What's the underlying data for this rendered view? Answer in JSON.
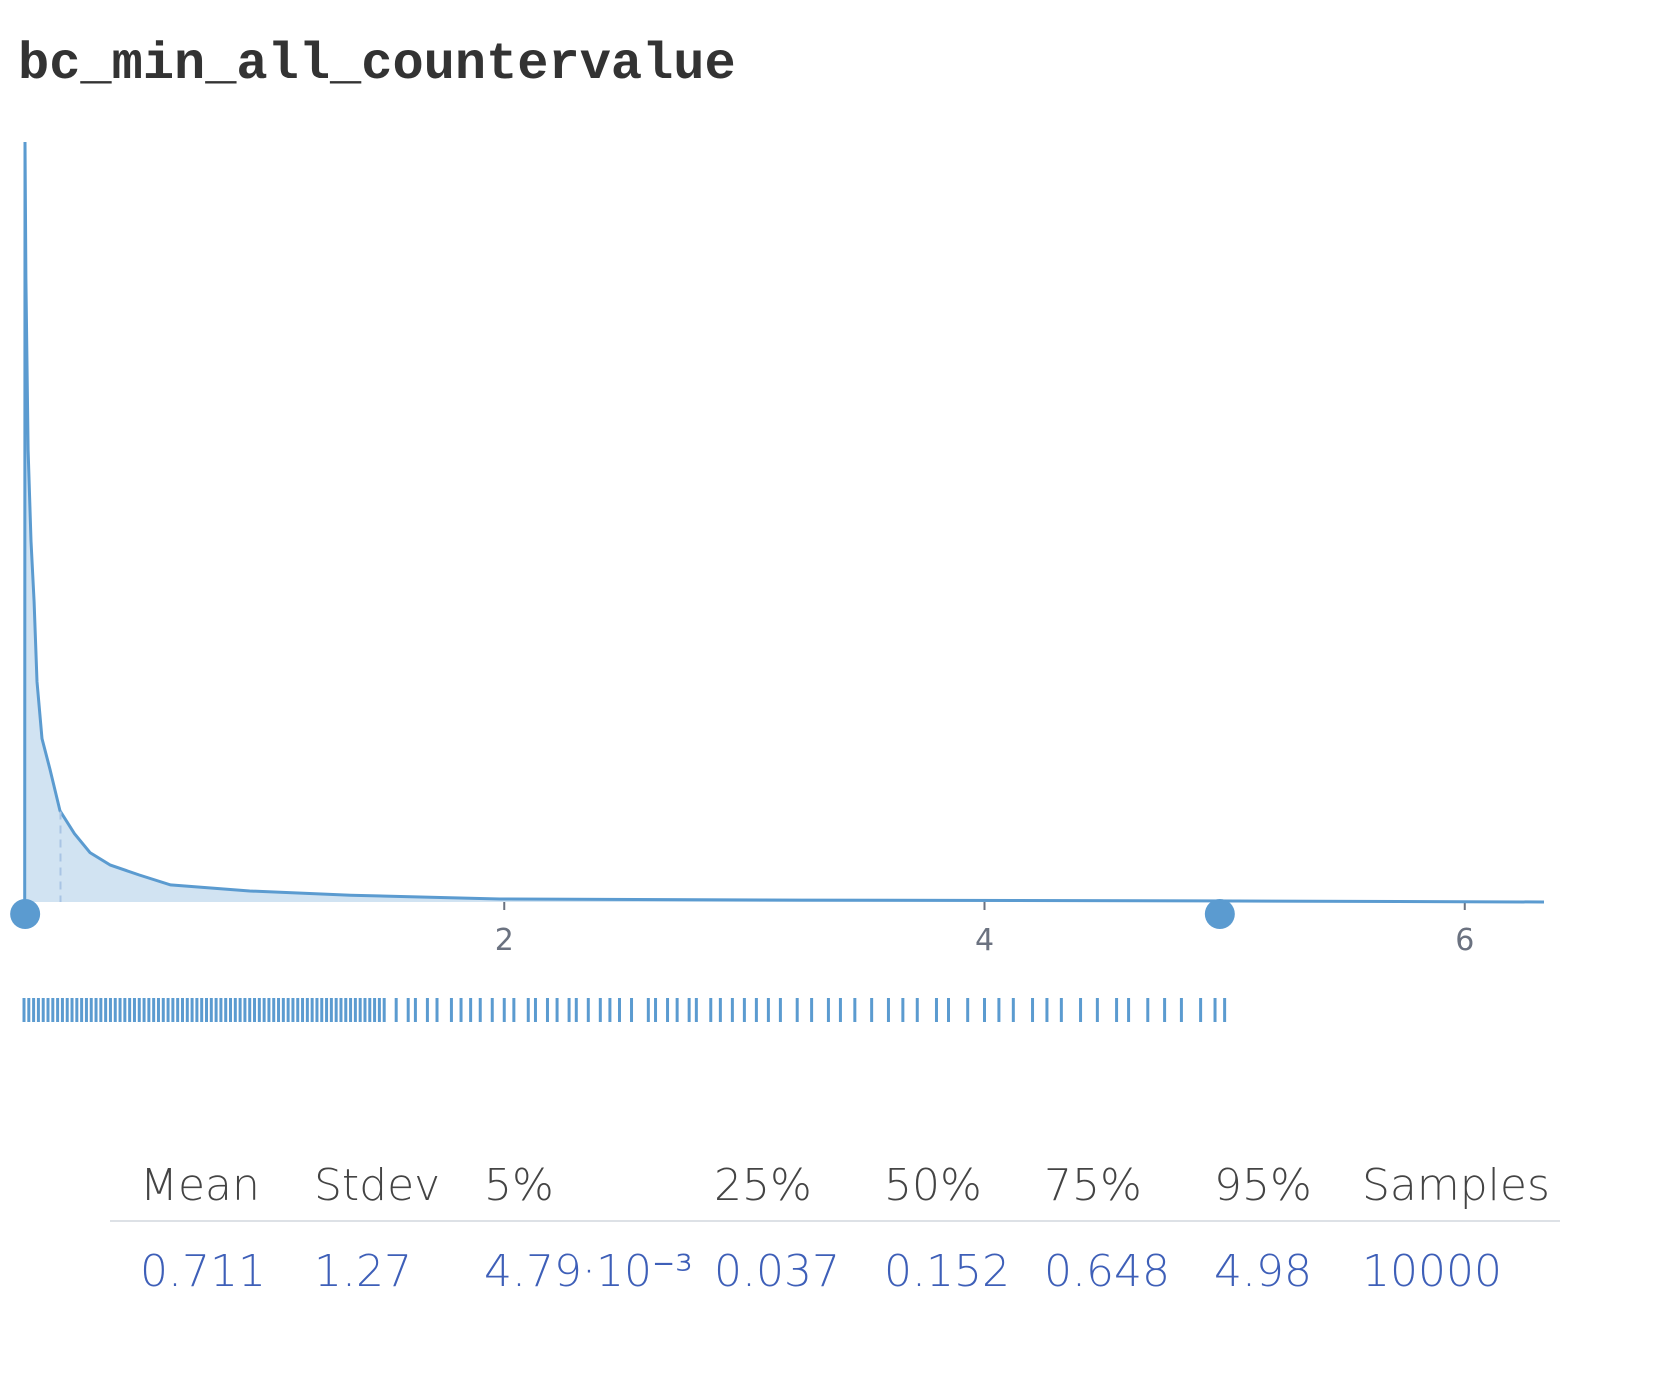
{
  "chart_data": {
    "type": "density",
    "title": "bc_min_all_countervalue",
    "x": [
      0.003,
      0.004,
      0.008,
      0.017,
      0.029,
      0.042,
      0.054,
      0.075,
      0.108,
      0.15,
      0.21,
      0.275,
      0.36,
      0.48,
      0.61,
      0.94,
      1.36,
      1.98,
      3.23,
      4.9,
      6.33
    ],
    "values": [
      0,
      20,
      16.4,
      11.9,
      9.5,
      7.9,
      5.8,
      4.3,
      3.5,
      2.4,
      1.8,
      1.3,
      0.97,
      0.71,
      0.45,
      0.29,
      0.18,
      0.08,
      0.05,
      0.03,
      0
    ],
    "color": "#5b9bd0",
    "xlim": [
      0,
      6.33
    ],
    "xticks": [
      2,
      4,
      6
    ],
    "ylim": [
      0,
      20
    ],
    "rug": [
      0,
      0.02,
      0.04,
      0.06,
      0.08,
      0.1,
      0.12,
      0.14,
      0.16,
      0.18,
      0.2,
      0.22,
      0.24,
      0.26,
      0.28,
      0.3,
      0.32,
      0.34,
      0.36,
      0.38,
      0.4,
      0.42,
      0.44,
      0.46,
      0.48,
      0.5,
      0.52,
      0.54,
      0.56,
      0.58,
      0.6,
      0.62,
      0.64,
      0.66,
      0.68,
      0.7,
      0.72,
      0.74,
      0.76,
      0.78,
      0.8,
      0.82,
      0.84,
      0.86,
      0.88,
      0.9,
      0.92,
      0.94,
      0.96,
      0.98,
      1,
      1.02,
      1.04,
      1.06,
      1.08,
      1.1,
      1.12,
      1.14,
      1.16,
      1.18,
      1.2,
      1.22,
      1.24,
      1.26,
      1.28,
      1.3,
      1.32,
      1.34,
      1.36,
      1.38,
      1.4,
      1.42,
      1.44,
      1.46,
      1.48,
      1.5,
      1.55,
      1.6,
      1.63,
      1.68,
      1.72,
      1.78,
      1.82,
      1.86,
      1.9,
      1.95,
      2.0,
      2.04,
      2.1,
      2.13,
      2.18,
      2.22,
      2.27,
      2.3,
      2.35,
      2.4,
      2.44,
      2.48,
      2.53,
      2.6,
      2.63,
      2.68,
      2.72,
      2.77,
      2.8,
      2.86,
      2.9,
      2.95,
      3.0,
      3.05,
      3.1,
      3.15,
      3.22,
      3.28,
      3.35,
      3.4,
      3.46,
      3.53,
      3.6,
      3.66,
      3.72,
      3.8,
      3.85,
      3.93,
      4.0,
      4.06,
      4.12,
      4.2,
      4.26,
      4.32,
      4.4,
      4.47,
      4.55,
      4.6,
      4.68,
      4.75,
      4.82,
      4.9,
      4.96,
      5.0
    ],
    "summary": {
      "headers": [
        "Mean",
        "Stdev",
        "5%",
        "25%",
        "50%",
        "75%",
        "95%",
        "Samples"
      ],
      "values": [
        0.711,
        1.27,
        0.00479,
        0.037,
        0.152,
        0.648,
        4.98,
        10000
      ],
      "value_labels": [
        "0.711",
        "1.27",
        "4.79·10⁻³",
        "0.037",
        "0.152",
        "0.648",
        "4.98",
        "10000"
      ]
    }
  }
}
